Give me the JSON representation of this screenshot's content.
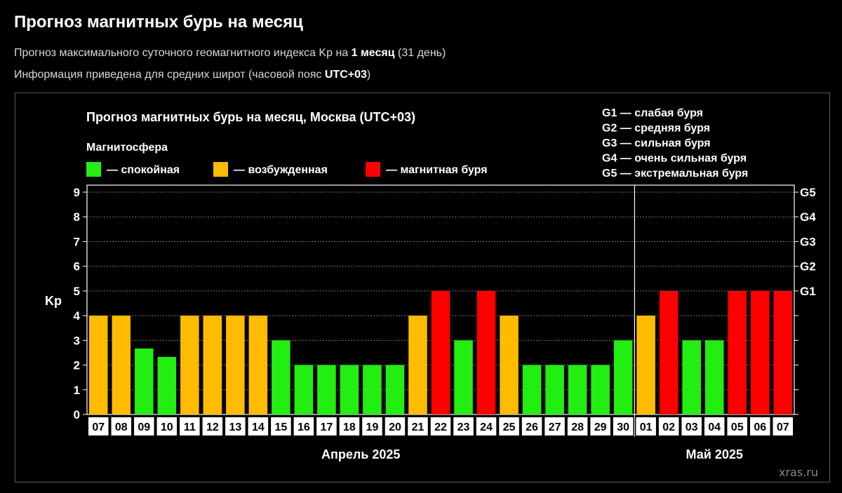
{
  "page": {
    "title": "Прогноз магнитных бурь на месяц",
    "subtitle1": {
      "prefix": "Прогноз максимального суточного геомагнитного индекса Kp на ",
      "bold": "1 месяц",
      "suffix": " (31 день)"
    },
    "subtitle2": {
      "prefix": "Информация приведена для средних широт (часовой пояс ",
      "bold": "UTC+03",
      "suffix": ")"
    }
  },
  "watermark": "xras.ru",
  "colors": {
    "quiet": "#22ee11",
    "active": "#ffbb00",
    "storm": "#ff0000",
    "background": "#000000",
    "grid": "#777777"
  },
  "chart_data": {
    "type": "bar",
    "title": "Прогноз магнитных бурь на месяц, Москва (UTC+03)",
    "legend_title": "Магнитосфера",
    "legend": [
      {
        "key": "quiet",
        "label": "— спокойная"
      },
      {
        "key": "active",
        "label": "— возбужденная"
      },
      {
        "key": "storm",
        "label": "— магнитная буря"
      }
    ],
    "g_scale_legend": [
      "G1 — слабая буря",
      "G2 — средняя буря",
      "G3 — сильная буря",
      "G4 — очень сильная буря",
      "G5 — экстремальная буря"
    ],
    "ylabel": "Kp",
    "ylim": [
      0,
      9
    ],
    "yticks": [
      "0",
      "1",
      "2",
      "3",
      "4",
      "5",
      "6",
      "7",
      "8",
      "9"
    ],
    "right_ticks": [
      {
        "value": 5,
        "label": "G1"
      },
      {
        "value": 6,
        "label": "G2"
      },
      {
        "value": 7,
        "label": "G3"
      },
      {
        "value": 8,
        "label": "G4"
      },
      {
        "value": 9,
        "label": "G5"
      }
    ],
    "grid": "dashed horizontal lines at each integer Kp",
    "months": [
      {
        "label": "Апрель 2025",
        "start_index": 0,
        "count": 24
      },
      {
        "label": "Май 2025",
        "start_index": 24,
        "count": 7
      }
    ],
    "categories": [
      "07",
      "08",
      "09",
      "10",
      "11",
      "12",
      "13",
      "14",
      "15",
      "16",
      "17",
      "18",
      "19",
      "20",
      "21",
      "22",
      "23",
      "24",
      "25",
      "26",
      "27",
      "28",
      "29",
      "30",
      "01",
      "02",
      "03",
      "04",
      "05",
      "06",
      "07"
    ],
    "values": [
      4,
      4,
      2.67,
      2.33,
      4,
      4,
      4,
      4,
      3,
      2,
      2,
      2,
      2,
      2,
      4,
      5,
      3,
      5,
      4,
      2,
      2,
      2,
      2,
      3,
      4,
      5,
      3,
      3,
      5,
      5,
      5
    ],
    "levels": [
      "active",
      "active",
      "quiet",
      "quiet",
      "active",
      "active",
      "active",
      "active",
      "quiet",
      "quiet",
      "quiet",
      "quiet",
      "quiet",
      "quiet",
      "active",
      "storm",
      "quiet",
      "storm",
      "active",
      "quiet",
      "quiet",
      "quiet",
      "quiet",
      "quiet",
      "active",
      "storm",
      "quiet",
      "quiet",
      "storm",
      "storm",
      "storm"
    ]
  }
}
